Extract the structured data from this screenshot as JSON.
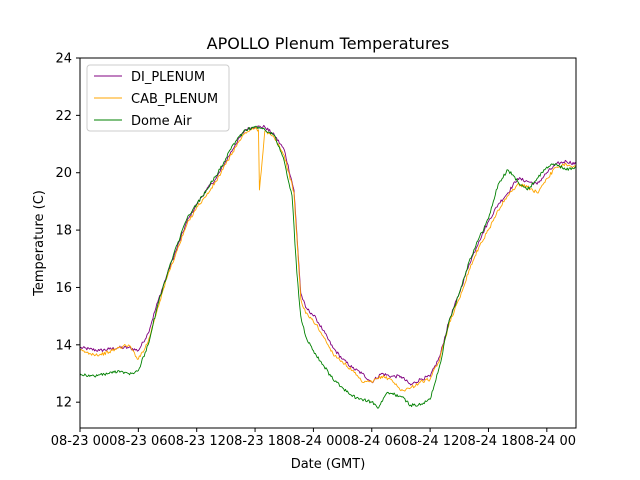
{
  "chart_data": {
    "type": "line",
    "title": "APOLLO Plenum Temperatures",
    "xlabel": "Date (GMT)",
    "ylabel": "Temperature (C)",
    "xlim": [
      0,
      51
    ],
    "ylim": [
      11.1,
      24
    ],
    "x_ticks": [
      {
        "x": 0,
        "label": "08-23 00"
      },
      {
        "x": 6,
        "label": "08-23 06"
      },
      {
        "x": 12,
        "label": "08-23 12"
      },
      {
        "x": 18,
        "label": "08-23 18"
      },
      {
        "x": 24,
        "label": "08-24 00"
      },
      {
        "x": 30,
        "label": "08-24 06"
      },
      {
        "x": 36,
        "label": "08-24 12"
      },
      {
        "x": 42,
        "label": "08-24 18"
      },
      {
        "x": 48,
        "label": "08-24 00"
      }
    ],
    "y_ticks": [
      12,
      14,
      16,
      18,
      20,
      22,
      24
    ],
    "legend_position": "top-left",
    "series": [
      {
        "name": "DI_PLENUM",
        "color": "#800080",
        "x": [
          0,
          1,
          2,
          3,
          4,
          5,
          6,
          7,
          8,
          9,
          10,
          11,
          12,
          13,
          14,
          15,
          16,
          17,
          18,
          19,
          20,
          21,
          22,
          22.7,
          23.2,
          23.8,
          24.3,
          25,
          26,
          27,
          28,
          29,
          30,
          31,
          32,
          33,
          34,
          35,
          36,
          37,
          38,
          39,
          40,
          41,
          42,
          43,
          44,
          45,
          46,
          47,
          48,
          49,
          50,
          51
        ],
        "y": [
          13.9,
          13.85,
          13.8,
          13.85,
          13.9,
          13.9,
          13.8,
          14.4,
          15.5,
          16.5,
          17.4,
          18.3,
          18.9,
          19.4,
          19.8,
          20.4,
          21.0,
          21.5,
          21.6,
          21.6,
          21.3,
          20.8,
          19.4,
          15.8,
          15.3,
          15.1,
          14.9,
          14.5,
          13.9,
          13.5,
          13.2,
          13.0,
          12.7,
          13.0,
          12.9,
          12.9,
          12.6,
          12.8,
          12.9,
          13.6,
          14.9,
          15.8,
          16.8,
          17.6,
          18.3,
          18.9,
          19.3,
          19.8,
          19.7,
          19.6,
          20.0,
          20.3,
          20.4,
          20.3
        ]
      },
      {
        "name": "CAB_PLENUM",
        "color": "#ffa500",
        "x": [
          0,
          1,
          2,
          3,
          4,
          5,
          6,
          7,
          8,
          9,
          10,
          11,
          12,
          13,
          14,
          15,
          16,
          17,
          18,
          18.35,
          18.45,
          19,
          20,
          21,
          22,
          22.7,
          23.2,
          23.8,
          24.3,
          25,
          26,
          27,
          28,
          29,
          30,
          31,
          32,
          33,
          34,
          35,
          36,
          37,
          38,
          39,
          40,
          41,
          42,
          43,
          44,
          45,
          46,
          47,
          48,
          49,
          50,
          51
        ],
        "y": [
          13.8,
          13.7,
          13.65,
          13.75,
          13.9,
          14.0,
          13.5,
          14.1,
          15.3,
          16.4,
          17.3,
          18.2,
          18.8,
          19.2,
          19.7,
          20.3,
          20.9,
          21.4,
          21.55,
          21.5,
          19.4,
          21.45,
          21.2,
          20.6,
          19.3,
          15.6,
          15.1,
          14.9,
          14.7,
          14.3,
          13.7,
          13.4,
          13.1,
          12.7,
          12.7,
          12.9,
          12.8,
          12.4,
          12.5,
          12.7,
          12.8,
          13.5,
          14.8,
          15.6,
          16.6,
          17.4,
          18.0,
          18.7,
          19.2,
          19.6,
          19.5,
          19.3,
          19.8,
          20.2,
          20.3,
          20.2
        ]
      },
      {
        "name": "Dome Air",
        "color": "#008000",
        "x": [
          0,
          1,
          2,
          3,
          4,
          5,
          6,
          7,
          8,
          9,
          10,
          11,
          12,
          13,
          14,
          15,
          16,
          17,
          18,
          19,
          20,
          21,
          21.8,
          22.3,
          22.7,
          23.2,
          24,
          25,
          26,
          27,
          28,
          29,
          30,
          30.7,
          31.5,
          32,
          33,
          34,
          35,
          36,
          37,
          38,
          39,
          40,
          41,
          42,
          42.5,
          43,
          44,
          45,
          46,
          47,
          48,
          49,
          50,
          51
        ],
        "y": [
          13.0,
          12.9,
          12.95,
          13.0,
          13.1,
          13.0,
          13.1,
          14.0,
          15.4,
          16.5,
          17.5,
          18.4,
          18.9,
          19.4,
          19.9,
          20.5,
          21.1,
          21.5,
          21.6,
          21.5,
          21.3,
          20.4,
          19.2,
          16.5,
          15.0,
          14.3,
          13.8,
          13.3,
          12.8,
          12.5,
          12.2,
          12.1,
          12.0,
          11.8,
          12.3,
          12.3,
          12.2,
          11.9,
          11.9,
          12.1,
          13.3,
          14.9,
          15.8,
          16.9,
          17.7,
          18.4,
          19.0,
          19.6,
          20.1,
          19.7,
          19.4,
          19.8,
          20.2,
          20.3,
          20.1,
          20.2
        ]
      }
    ]
  }
}
